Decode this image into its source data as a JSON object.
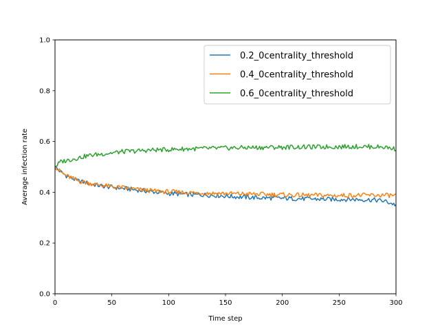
{
  "chart_data": {
    "type": "line",
    "title": "",
    "xlabel": "Time step",
    "ylabel": "Average infection rate",
    "xlim": [
      0,
      300
    ],
    "ylim": [
      0.0,
      1.0
    ],
    "xticks": [
      "0",
      "50",
      "100",
      "150",
      "200",
      "250",
      "300"
    ],
    "yticks": [
      "0.0",
      "0.2",
      "0.4",
      "0.6",
      "0.8",
      "1.0"
    ],
    "grid": false,
    "legend_position": "top-right",
    "series": [
      {
        "name": "0.2_0centrality_threshold",
        "color": "#1f77b4",
        "x": [
          0,
          5,
          10,
          20,
          30,
          40,
          50,
          60,
          70,
          80,
          90,
          100,
          110,
          120,
          130,
          140,
          150,
          160,
          170,
          180,
          190,
          200,
          210,
          220,
          230,
          240,
          250,
          260,
          270,
          280,
          290,
          300
        ],
        "y": [
          0.5,
          0.48,
          0.465,
          0.445,
          0.435,
          0.425,
          0.42,
          0.415,
          0.41,
          0.405,
          0.4,
          0.395,
          0.393,
          0.39,
          0.39,
          0.388,
          0.385,
          0.382,
          0.38,
          0.378,
          0.377,
          0.376,
          0.375,
          0.374,
          0.373,
          0.372,
          0.372,
          0.372,
          0.371,
          0.37,
          0.365,
          0.35
        ]
      },
      {
        "name": "0.4_0centrality_threshold",
        "color": "#ff7f0e",
        "x": [
          0,
          5,
          10,
          20,
          30,
          40,
          50,
          60,
          70,
          80,
          90,
          100,
          110,
          120,
          130,
          140,
          150,
          160,
          170,
          180,
          190,
          200,
          210,
          220,
          230,
          240,
          250,
          260,
          270,
          280,
          290,
          300
        ],
        "y": [
          0.5,
          0.48,
          0.465,
          0.445,
          0.435,
          0.428,
          0.422,
          0.418,
          0.412,
          0.408,
          0.404,
          0.402,
          0.4,
          0.398,
          0.397,
          0.396,
          0.395,
          0.394,
          0.393,
          0.392,
          0.391,
          0.39,
          0.389,
          0.388,
          0.388,
          0.387,
          0.387,
          0.388,
          0.388,
          0.388,
          0.388,
          0.387
        ]
      },
      {
        "name": "0.6_0centrality_threshold",
        "color": "#2ca02c",
        "x": [
          0,
          5,
          10,
          20,
          30,
          40,
          50,
          60,
          70,
          80,
          90,
          100,
          110,
          120,
          130,
          140,
          150,
          160,
          170,
          180,
          190,
          200,
          210,
          220,
          230,
          240,
          250,
          260,
          270,
          280,
          290,
          300
        ],
        "y": [
          0.5,
          0.52,
          0.525,
          0.535,
          0.545,
          0.55,
          0.555,
          0.56,
          0.562,
          0.565,
          0.567,
          0.568,
          0.57,
          0.571,
          0.572,
          0.573,
          0.574,
          0.575,
          0.576,
          0.576,
          0.577,
          0.577,
          0.578,
          0.578,
          0.578,
          0.579,
          0.579,
          0.58,
          0.58,
          0.579,
          0.578,
          0.57
        ]
      }
    ]
  }
}
